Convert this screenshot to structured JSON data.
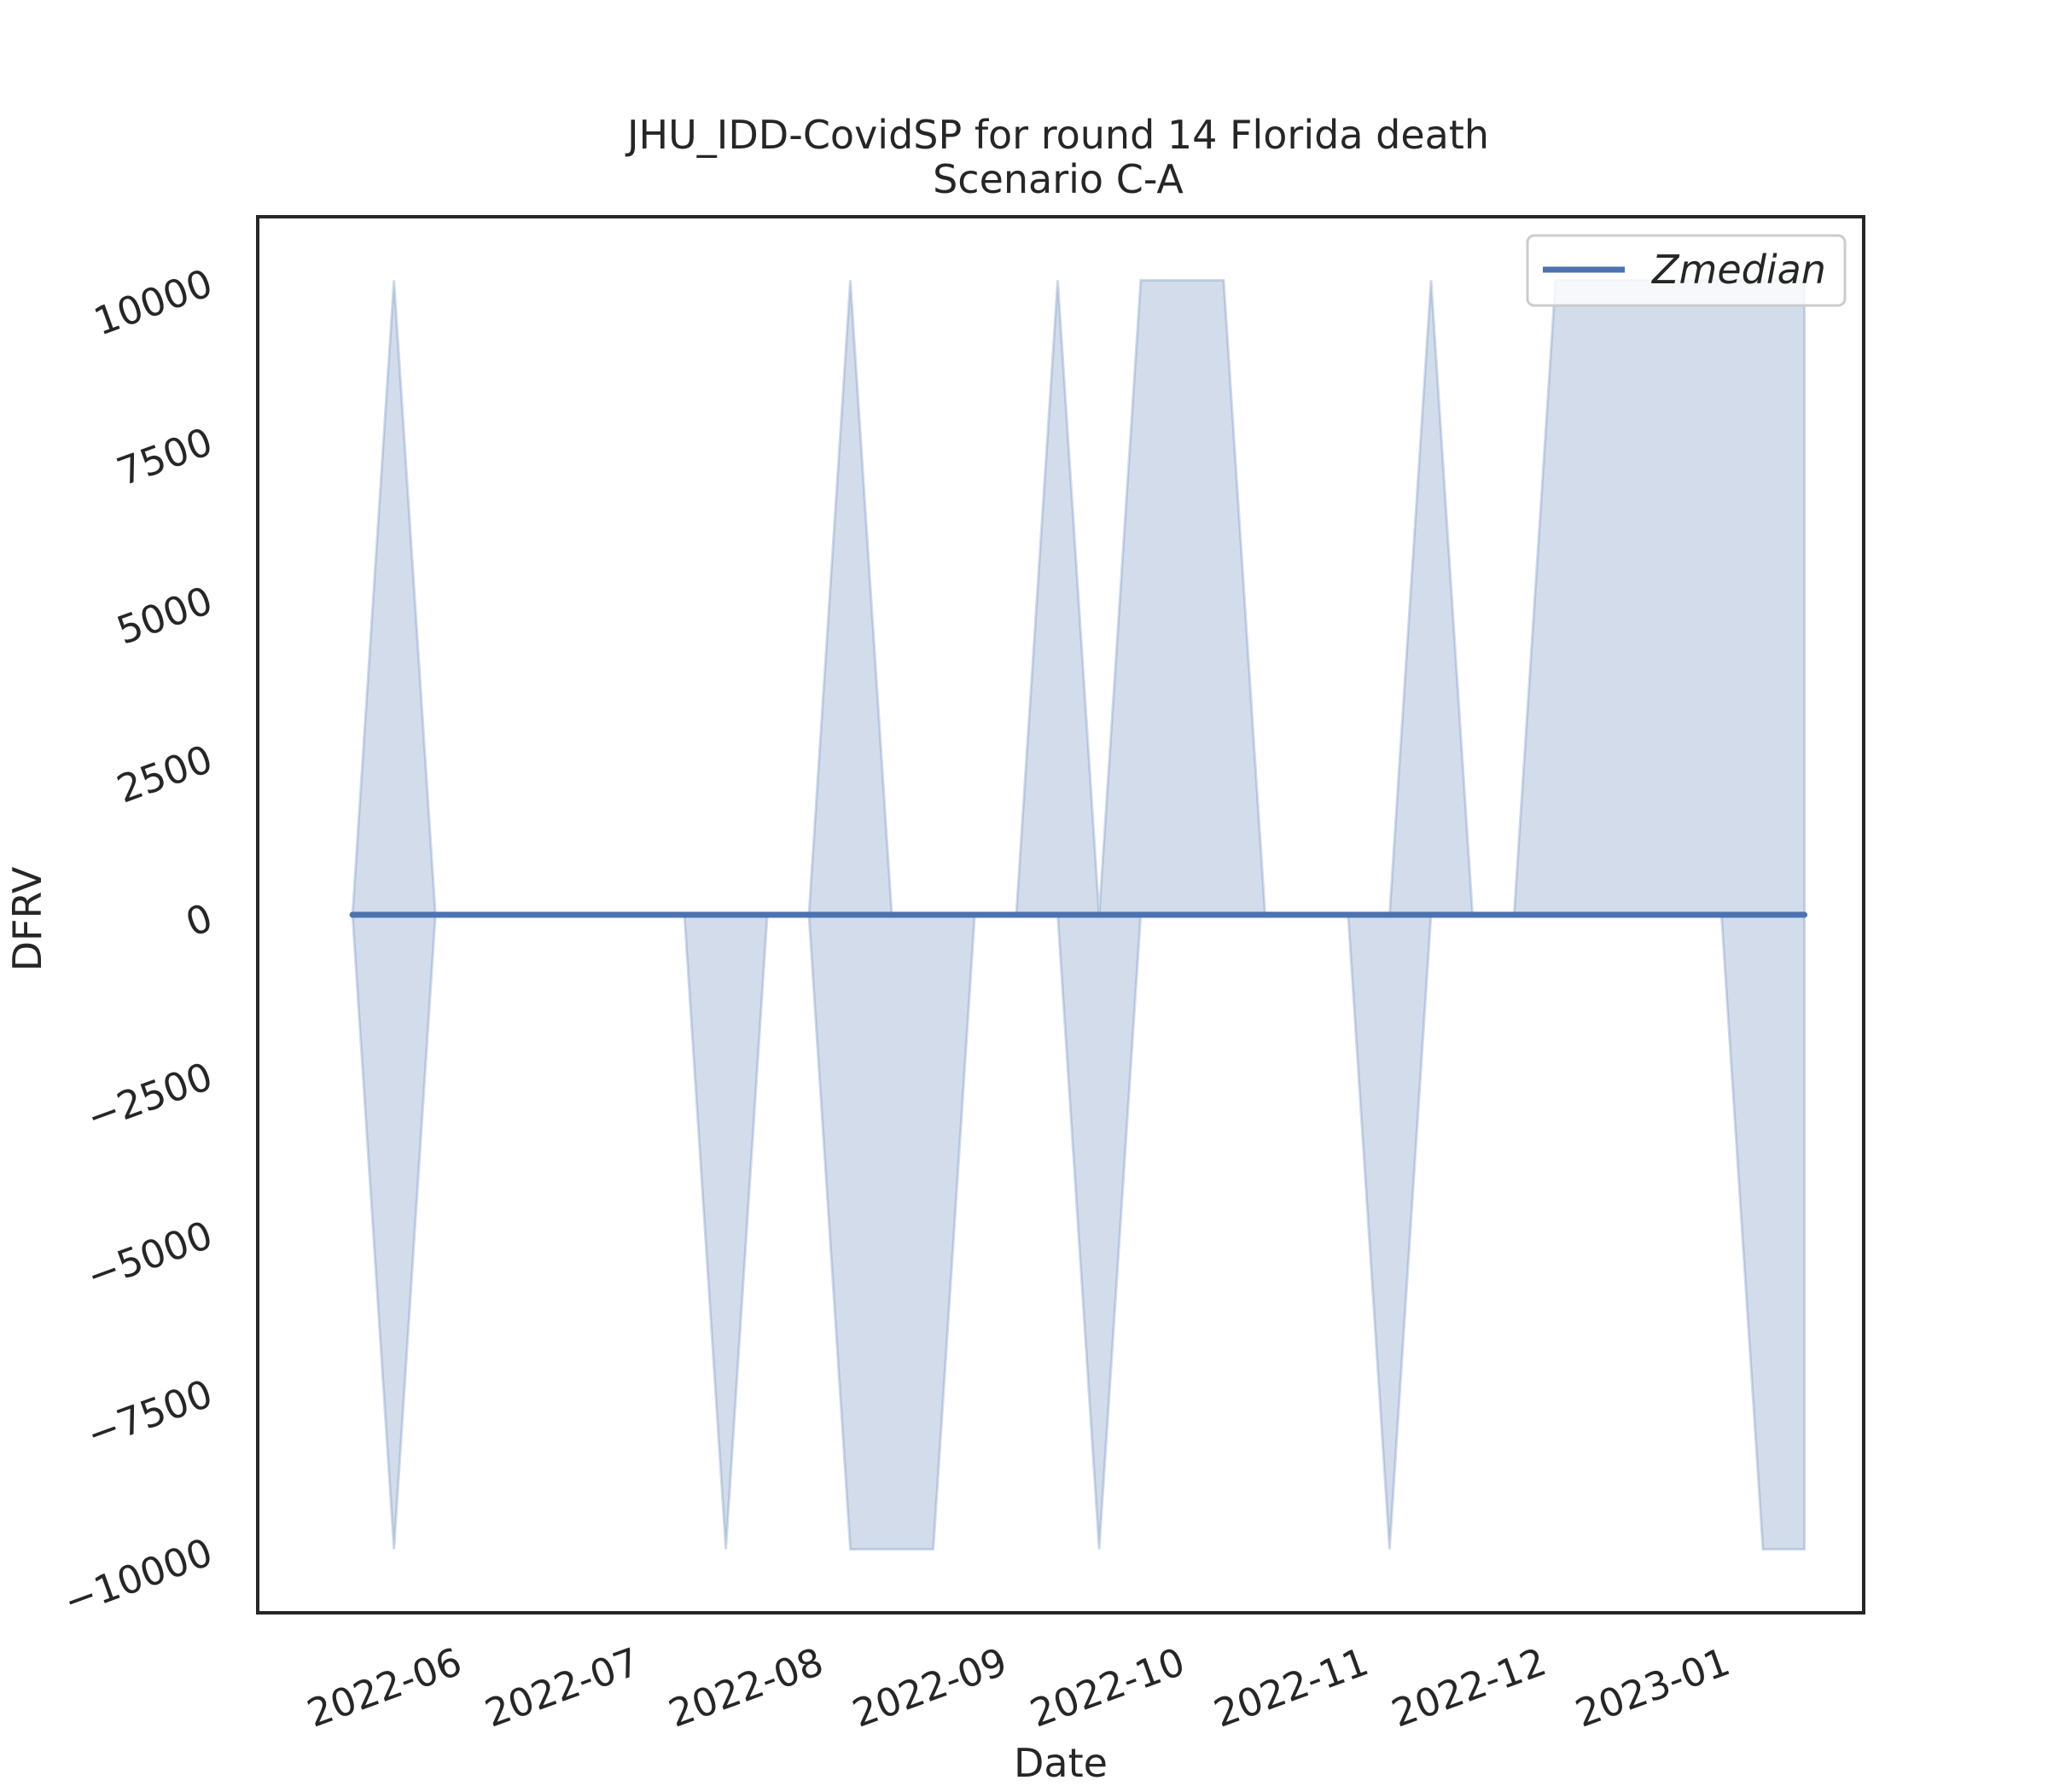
{
  "chart_data": {
    "type": "line",
    "title": "JHU_IDD-CovidSP for round 14 Florida death",
    "subtitle": "Scenario C-A",
    "xlabel": "Date",
    "ylabel": "DFRV",
    "ylim": [
      -11000,
      11000
    ],
    "yticks": [
      -10000,
      -7500,
      -5000,
      -2500,
      0,
      2500,
      5000,
      7500,
      10000
    ],
    "ytick_labels": [
      "−10000",
      "−7500",
      "−5000",
      "−2500",
      "0",
      "2500",
      "5000",
      "7500",
      "10000"
    ],
    "xlim": [
      "2022-04-28",
      "2023-01-24"
    ],
    "xticks": [
      "2022-06-01",
      "2022-07-01",
      "2022-08-01",
      "2022-09-01",
      "2022-10-01",
      "2022-11-01",
      "2022-12-01",
      "2023-01-01"
    ],
    "xtick_labels": [
      "2022-06",
      "2022-07",
      "2022-08",
      "2022-09",
      "2022-10",
      "2022-11",
      "2022-12",
      "2023-01"
    ],
    "grid": false,
    "legend": {
      "position": "top-right",
      "entries": [
        "Zmedian"
      ]
    },
    "colors": {
      "line": "#4c72b0",
      "band": "#4c72b0"
    },
    "x": [
      "2022-05-14",
      "2022-05-21",
      "2022-05-28",
      "2022-06-04",
      "2022-06-11",
      "2022-06-18",
      "2022-06-25",
      "2022-07-02",
      "2022-07-09",
      "2022-07-16",
      "2022-07-23",
      "2022-07-30",
      "2022-08-06",
      "2022-08-13",
      "2022-08-20",
      "2022-08-27",
      "2022-09-03",
      "2022-09-10",
      "2022-09-17",
      "2022-09-24",
      "2022-10-01",
      "2022-10-08",
      "2022-10-15",
      "2022-10-22",
      "2022-10-29",
      "2022-11-05",
      "2022-11-12",
      "2022-11-19",
      "2022-11-26",
      "2022-12-03",
      "2022-12-10",
      "2022-12-17",
      "2022-12-24",
      "2022-12-31",
      "2023-01-07",
      "2023-01-14"
    ],
    "series": [
      {
        "name": "Zmedian",
        "values": [
          0,
          0,
          0,
          0,
          0,
          0,
          0,
          0,
          0,
          0,
          0,
          0,
          0,
          0,
          0,
          0,
          0,
          0,
          0,
          0,
          0,
          0,
          0,
          0,
          0,
          0,
          0,
          0,
          0,
          0,
          0,
          0,
          0,
          0,
          0,
          0
        ]
      }
    ],
    "band": {
      "upper": [
        0,
        10000,
        0,
        0,
        0,
        0,
        0,
        0,
        0,
        0,
        0,
        0,
        10000,
        0,
        0,
        0,
        0,
        10000,
        0,
        10000,
        10000,
        10000,
        0,
        0,
        0,
        0,
        10000,
        0,
        0,
        10000,
        10000,
        10000,
        10000,
        10000,
        10000,
        10000
      ],
      "lower": [
        0,
        -10000,
        0,
        0,
        0,
        0,
        0,
        0,
        0,
        -10000,
        0,
        0,
        -10000,
        -10000,
        -10000,
        0,
        0,
        0,
        -10000,
        0,
        0,
        0,
        0,
        0,
        0,
        -10000,
        0,
        0,
        0,
        0,
        0,
        0,
        0,
        0,
        -10000,
        -10000
      ]
    }
  }
}
